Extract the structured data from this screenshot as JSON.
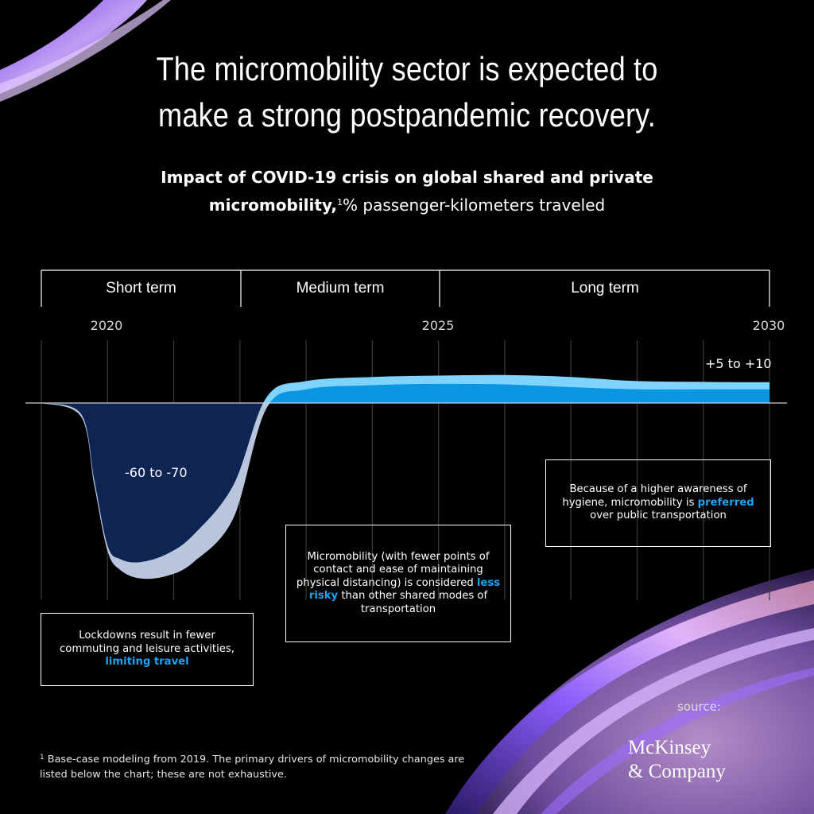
{
  "title_line1": "The micromobility sector is expected to",
  "title_line2": "make a strong postpandemic recovery.",
  "subtitle": {
    "bold_line1": "Impact of COVID-19 crisis on global shared and private",
    "bold_line2": "micromobility,",
    "superscript": "1",
    "unit": "% passenger-kilometers traveled"
  },
  "periods": [
    "Short term",
    "Medium term",
    "Long term"
  ],
  "years": [
    "2020",
    "2025",
    "2030"
  ],
  "chart_data": {
    "type": "area",
    "x_start": 2019,
    "x_end": 2030,
    "x_ticks": [
      2020,
      2025,
      2030
    ],
    "ylim": [
      -75,
      15
    ],
    "series": [
      {
        "name": "",
        "x": [
          2019.0,
          2019.6,
          2019.8,
          2020.0,
          2020.2,
          2020.5,
          2020.9,
          2021.3,
          2021.9,
          2022.4,
          2023.0,
          2024.0,
          2025.0,
          2026.0,
          2027.0,
          2028.0,
          2029.0,
          2030.0
        ],
        "low": [
          0,
          -5,
          -30,
          -54,
          -61,
          -64,
          -63,
          -58,
          -42,
          -2,
          5,
          6.5,
          7,
          6.8,
          5.8,
          5,
          5,
          5
        ],
        "high": [
          0,
          -4,
          -28,
          -52,
          -57,
          -58,
          -55,
          -48,
          -30,
          2,
          8,
          9.5,
          10,
          10.2,
          9.5,
          8,
          7.7,
          7.6
        ]
      }
    ],
    "annotations": [
      "-60 to -70",
      "+5 to +10"
    ]
  },
  "value_labels": {
    "dip": "-60 to -70",
    "recovery": "+5 to +10"
  },
  "notes": {
    "short": {
      "text": "Lockdowns result in fewer commuting and leisure activities, ",
      "highlight": "limiting travel",
      "after": ""
    },
    "medium": {
      "text": "Micromobility (with fewer points of contact and ease of maintaining physical distancing) is considered ",
      "highlight": "less risky",
      "after": " than other shared modes of transportation"
    },
    "long": {
      "text": "Because of a higher awareness of hygiene, micromobility is ",
      "highlight": "preferred",
      "after": " over public transportation"
    }
  },
  "colors": {
    "dip_front": "#0e2452",
    "dip_back": "#b8c5dc",
    "rise_front": "#0a96e0",
    "rise_back": "#7fd3ff",
    "highlight": "#1ba4f2"
  },
  "source_label": "source:",
  "brand_line1": "McKinsey",
  "brand_line2": "& Company",
  "footnote": {
    "superscript": "1",
    "text": " Base-case modeling from 2019. The primary drivers of micromobility changes are listed below the chart; these are not exhaustive."
  }
}
